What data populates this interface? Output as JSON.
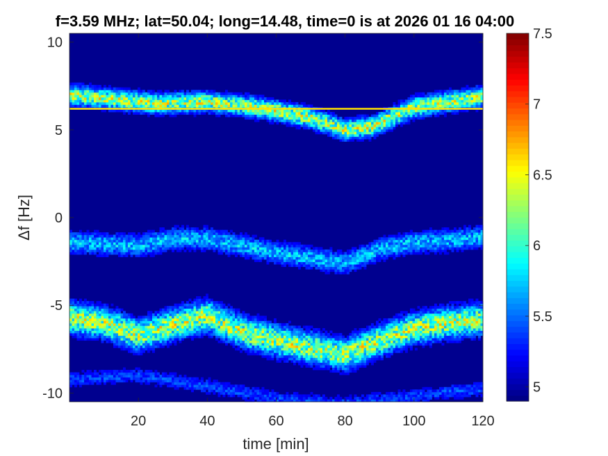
{
  "chart_data": {
    "type": "heatmap",
    "title": "f=3.59 MHz;  lat=50.04; long=14.48, time=0 is at 2026 01 16 04:00",
    "xlabel": "time [min]",
    "ylabel": "Δf [Hz]",
    "xlim": [
      0,
      120
    ],
    "ylim": [
      -10.5,
      10.5
    ],
    "x_ticks": [
      "20",
      "40",
      "60",
      "80",
      "100",
      "120"
    ],
    "y_ticks": [
      "10",
      "5",
      "0",
      "-5",
      "-10"
    ],
    "x_tick_values": [
      20,
      40,
      60,
      80,
      100,
      120
    ],
    "y_tick_values": [
      10,
      5,
      0,
      -5,
      -10
    ],
    "colorbar": {
      "min": 4.9,
      "max": 7.5,
      "ticks": [
        "7.5",
        "7",
        "6.5",
        "6",
        "5.5",
        "5"
      ],
      "tick_values": [
        7.5,
        7,
        6.5,
        6,
        5.5,
        5
      ],
      "colormap": "jet"
    },
    "background_level": 4.9,
    "carrier_line": {
      "df_hz": 6.2,
      "level": 6.6
    },
    "traces": [
      {
        "name": "upper",
        "points": [
          [
            0,
            7.0
          ],
          [
            10,
            6.8
          ],
          [
            25,
            6.5
          ],
          [
            40,
            6.6
          ],
          [
            50,
            6.4
          ],
          [
            60,
            6.1
          ],
          [
            70,
            5.7
          ],
          [
            80,
            5.0
          ],
          [
            88,
            5.2
          ],
          [
            100,
            6.3
          ],
          [
            110,
            6.6
          ],
          [
            120,
            6.9
          ]
        ],
        "width_hz": 0.7,
        "peak": 6.6
      },
      {
        "name": "middle",
        "points": [
          [
            0,
            -1.4
          ],
          [
            10,
            -1.5
          ],
          [
            20,
            -1.6
          ],
          [
            30,
            -1.2
          ],
          [
            40,
            -1.2
          ],
          [
            50,
            -1.6
          ],
          [
            60,
            -2.0
          ],
          [
            70,
            -2.3
          ],
          [
            80,
            -2.6
          ],
          [
            90,
            -1.8
          ],
          [
            100,
            -1.4
          ],
          [
            110,
            -1.3
          ],
          [
            120,
            -1.1
          ]
        ],
        "width_hz": 0.8,
        "peak": 5.9
      },
      {
        "name": "lower",
        "points": [
          [
            0,
            -5.7
          ],
          [
            10,
            -6.0
          ],
          [
            20,
            -6.7
          ],
          [
            30,
            -6.1
          ],
          [
            40,
            -5.6
          ],
          [
            50,
            -6.5
          ],
          [
            60,
            -7.0
          ],
          [
            70,
            -7.4
          ],
          [
            80,
            -7.8
          ],
          [
            90,
            -7.0
          ],
          [
            100,
            -6.3
          ],
          [
            110,
            -6.0
          ],
          [
            120,
            -5.8
          ]
        ],
        "width_hz": 1.1,
        "peak": 6.6
      },
      {
        "name": "bottom",
        "points": [
          [
            0,
            -9.2
          ],
          [
            20,
            -9.0
          ],
          [
            40,
            -9.6
          ],
          [
            60,
            -10.3
          ],
          [
            80,
            -10.6
          ],
          [
            100,
            -10.2
          ],
          [
            110,
            -9.9
          ],
          [
            120,
            -9.8
          ]
        ],
        "width_hz": 0.6,
        "peak": 5.5
      }
    ]
  }
}
